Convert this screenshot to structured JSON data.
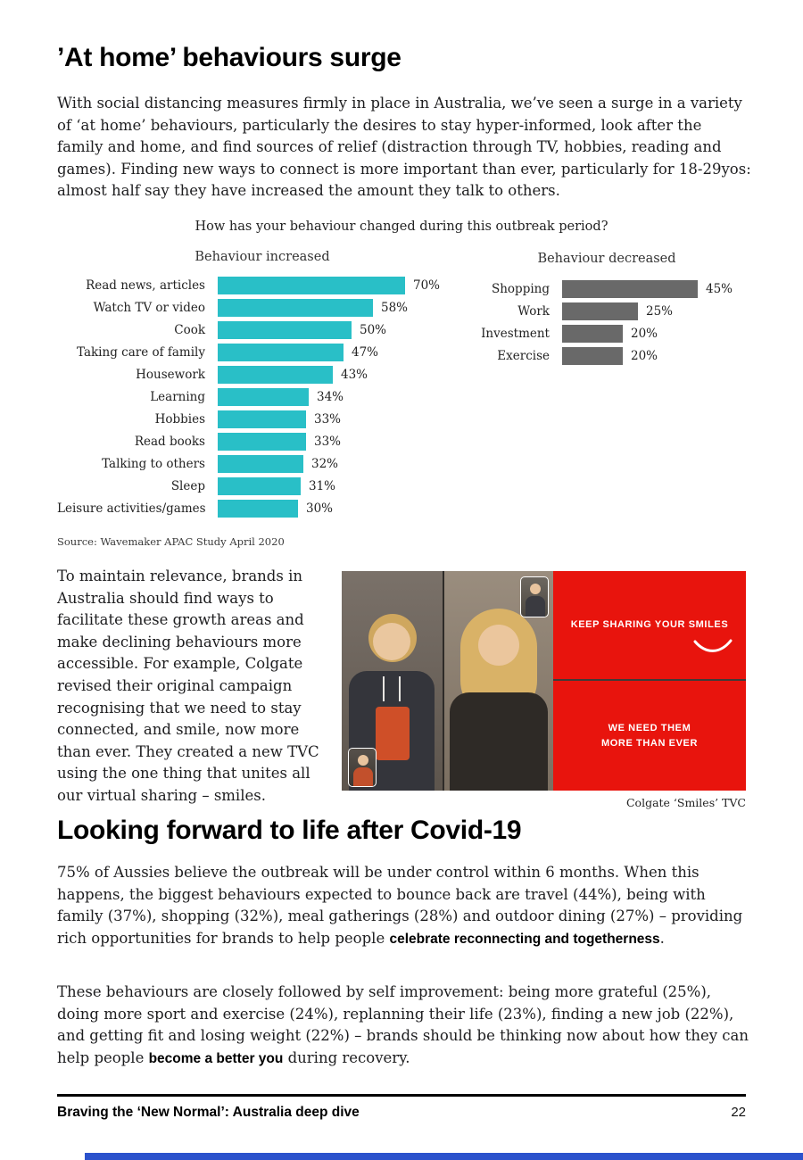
{
  "colors": {
    "teal": "#29BFC7",
    "gray": "#696969",
    "red": "#E8140D",
    "blue": "#2B52CC"
  },
  "header": {
    "title": "’At home’ behaviours surge",
    "intro": "With social distancing measures firmly in place in Australia, we’ve seen a surge in a variety of ‘at home’ behaviours, particularly the desires to stay hyper-informed, look after the family and home, and find sources of relief (distraction through TV, hobbies, reading and games).  Finding new ways to connect is more important than ever, particularly for 18-29yos: almost half say they have increased the amount they talk to others."
  },
  "survey": {
    "question": "How has your behaviour changed during this outbreak period?",
    "source": "Source: Wavemaker APAC Study April 2020"
  },
  "chart_data": [
    {
      "type": "bar",
      "title": "Behaviour increased",
      "orientation": "horizontal",
      "unit": "%",
      "bar_color": "#29BFC7",
      "categories": [
        "Read news, articles",
        "Watch TV or video",
        "Cook",
        "Taking care of family",
        "Housework",
        "Learning",
        "Hobbies",
        "Read books",
        "Talking to others",
        "Sleep",
        "Leisure activities/games"
      ],
      "values": [
        70,
        58,
        50,
        47,
        43,
        34,
        33,
        33,
        32,
        31,
        30
      ]
    },
    {
      "type": "bar",
      "title": "Behaviour decreased",
      "orientation": "horizontal",
      "unit": "%",
      "bar_color": "#696969",
      "categories": [
        "Shopping",
        "Work",
        "Investment",
        "Exercise"
      ],
      "values": [
        45,
        25,
        20,
        20
      ]
    }
  ],
  "colgate": {
    "paragraph": "To maintain relevance, brands in Australia should find ways to facilitate these growth areas and make declining behaviours more accessible. For example, Colgate revised their original campaign recognising that we need to stay connected, and smile, now more than ever. They created a new TVC using the one thing that unites all our virtual sharing – smiles.",
    "image_text_top": "KEEP SHARING YOUR SMILES",
    "image_text_bottom": "WE NEED THEM\nMORE THAN EVER",
    "caption": "Colgate ‘Smiles’ TVC"
  },
  "forward": {
    "title": "Looking forward to life after Covid-19",
    "p1_pre": "75% of Aussies believe the outbreak will be under control within 6 months.  When this happens, the biggest behaviours expected to bounce back are travel (44%), being with family (37%), shopping (32%), meal gatherings (28%) and outdoor dining (27%) – providing rich opportunities for brands to help people ",
    "p1_bold": "celebrate reconnecting and togetherness",
    "p1_post": ".",
    "p2_pre": "These behaviours are closely followed by self improvement: being more grateful (25%), doing more sport and exercise (24%), replanning their life (23%), finding a new job (22%), and getting fit and losing weight (22%) – brands should be thinking now about how they can help people ",
    "p2_bold": "become a better you",
    "p2_post": " during recovery."
  },
  "footer": {
    "left": "Braving the ‘New Normal’: Australia deep dive",
    "page": "22"
  }
}
